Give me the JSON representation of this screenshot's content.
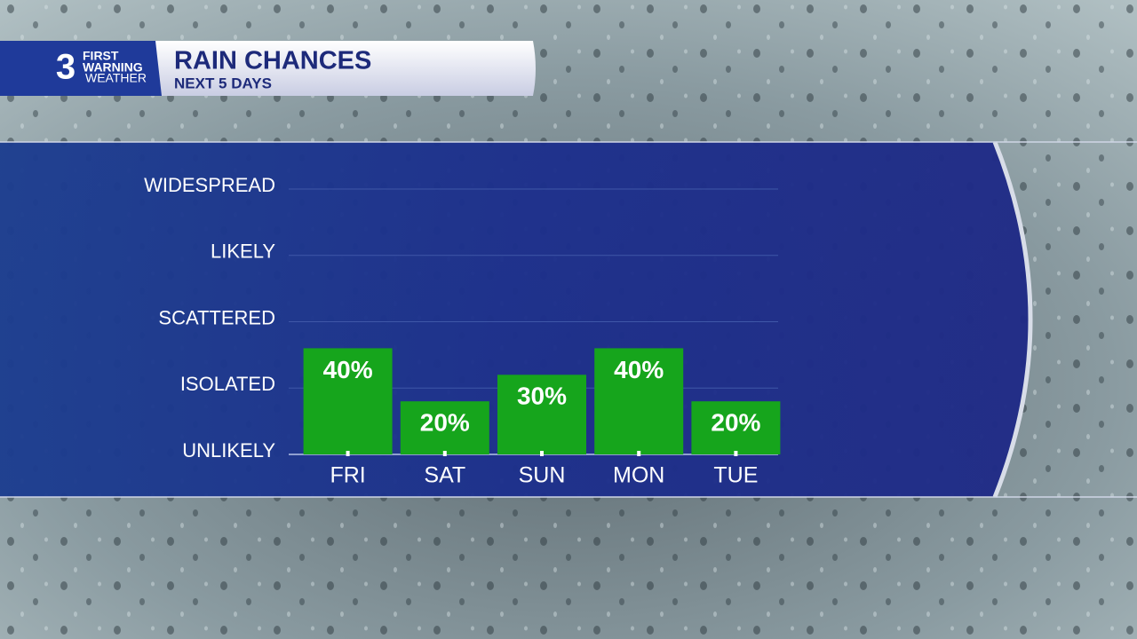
{
  "header": {
    "logo_number": "3",
    "logo_lines": [
      "FIRST",
      "WARNING",
      "WEATHER"
    ]
  },
  "chart_data": {
    "type": "bar",
    "title": "RAIN CHANCES",
    "subtitle": "NEXT 5 DAYS",
    "categories": [
      "FRI",
      "SAT",
      "SUN",
      "MON",
      "TUE"
    ],
    "values": [
      40,
      20,
      30,
      40,
      20
    ],
    "value_labels": [
      "40%",
      "20%",
      "30%",
      "40%",
      "20%"
    ],
    "color": "#16a51c",
    "ylim": [
      0,
      100
    ],
    "yticks": [
      {
        "value": 0,
        "label": "UNLIKELY"
      },
      {
        "value": 25,
        "label": "ISOLATED"
      },
      {
        "value": 50,
        "label": "SCATTERED"
      },
      {
        "value": 75,
        "label": "LIKELY"
      },
      {
        "value": 100,
        "label": "WIDESPREAD"
      }
    ],
    "grid": true
  }
}
